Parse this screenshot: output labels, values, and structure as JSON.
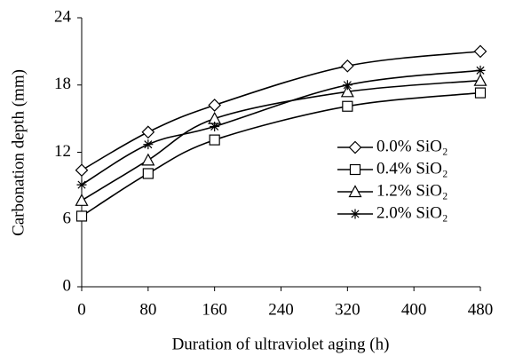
{
  "chart_data": {
    "type": "line",
    "x_label": "Duration of ultraviolet aging (h)",
    "y_label": "Carbonation depth (mm)",
    "x": [
      0,
      80,
      160,
      320,
      480
    ],
    "series": [
      {
        "name": "0.0% SiO₂",
        "color": "#000000",
        "marker": "diamond",
        "values": [
          10.4,
          13.8,
          16.2,
          19.7,
          21.0
        ]
      },
      {
        "name": "0.4% SiO₂",
        "color": "#000000",
        "marker": "square",
        "values": [
          6.3,
          10.1,
          13.1,
          16.1,
          17.3
        ]
      },
      {
        "name": "1.2% SiO₂",
        "color": "#000000",
        "marker": "triangle",
        "values": [
          7.7,
          11.3,
          15.0,
          17.4,
          18.4
        ]
      },
      {
        "name": "2.0% SiO₂",
        "color": "#000000",
        "marker": "star",
        "values": [
          9.1,
          12.7,
          14.3,
          18.0,
          19.3
        ]
      }
    ],
    "xlim": [
      0,
      480
    ],
    "xticks": [
      0,
      80,
      160,
      240,
      320,
      400,
      480
    ],
    "ylim": [
      0,
      24
    ],
    "yticks": [
      0,
      6,
      12,
      18,
      24
    ],
    "grid": false,
    "legend": "right"
  }
}
